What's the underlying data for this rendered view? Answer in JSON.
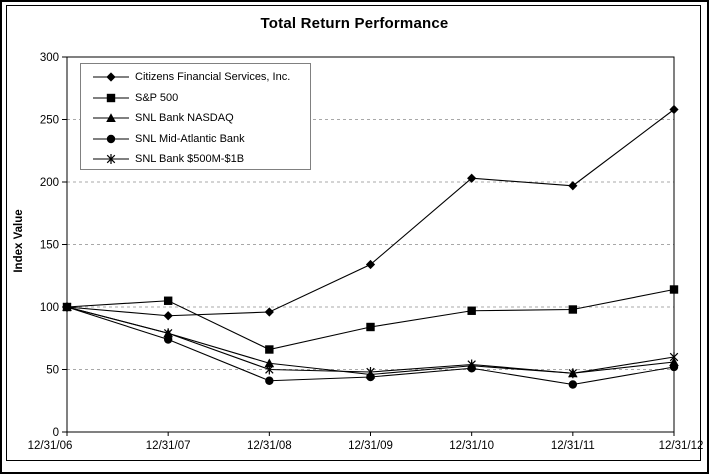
{
  "window": {
    "background": "#ffffff",
    "outer_border_color": "#000000",
    "inner_border_color": "#000000"
  },
  "chart_data": {
    "type": "line",
    "title": "Total Return Performance",
    "ylabel": "Index Value",
    "xlabel": "",
    "ylim": [
      0,
      300
    ],
    "yticks": [
      0,
      50,
      100,
      150,
      200,
      250,
      300
    ],
    "grid": "horizontal-dashed",
    "legend_position": "top-left-inside",
    "categories": [
      "12/31/06",
      "12/31/07",
      "12/31/08",
      "12/31/09",
      "12/31/10",
      "12/31/11",
      "12/31/12"
    ],
    "series": [
      {
        "name": "Citizens Financial Services, Inc.",
        "marker": "diamond",
        "values": [
          100,
          93,
          96,
          134,
          203,
          197,
          258
        ]
      },
      {
        "name": "S&P 500",
        "marker": "square",
        "values": [
          100,
          105,
          66,
          84,
          97,
          98,
          114
        ]
      },
      {
        "name": "SNL Bank NASDAQ",
        "marker": "triangle",
        "values": [
          100,
          79,
          55,
          46,
          53,
          47,
          56
        ]
      },
      {
        "name": "SNL Mid-Atlantic Bank",
        "marker": "circle",
        "values": [
          100,
          74,
          41,
          44,
          51,
          38,
          52
        ]
      },
      {
        "name": "SNL Bank $500M-$1B",
        "marker": "asterisk",
        "values": [
          100,
          79,
          50,
          48,
          54,
          47,
          60
        ]
      }
    ],
    "colors": {
      "series_line": "#000000",
      "gridline": "#a8a8a8",
      "axis": "#000000",
      "legend_border": "#808080",
      "text": "#000000"
    }
  }
}
